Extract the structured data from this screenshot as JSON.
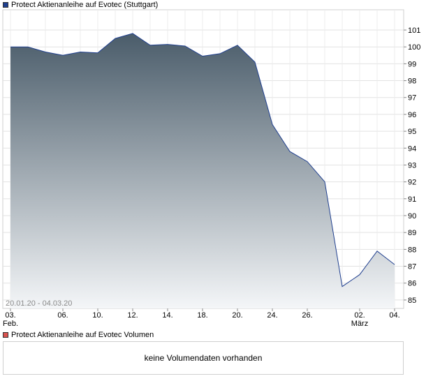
{
  "legend": {
    "price_series": "Protect Aktienanleihe auf Evotec  (Stuttgart)",
    "volume_series": "Protect Aktienanleihe auf Evotec  Volumen",
    "price_color": "#1f3f8f",
    "volume_color": "#d9534f"
  },
  "date_range": "20.01.20 - 04.03.20",
  "volume_message": "keine Volumendaten vorhanden",
  "chart_data": {
    "type": "area",
    "ylim": [
      84.5,
      102.2
    ],
    "y_ticks": [
      85,
      86,
      87,
      88,
      89,
      90,
      91,
      92,
      93,
      94,
      95,
      96,
      97,
      98,
      99,
      100,
      101
    ],
    "x": [
      "03.02.",
      "04.02.",
      "05.02.",
      "06.02.",
      "07.02.",
      "10.02.",
      "11.02.",
      "12.02.",
      "13.02.",
      "14.02.",
      "17.02.",
      "18.02.",
      "19.02.",
      "20.02.",
      "21.02.",
      "24.02.",
      "25.02.",
      "26.02.",
      "27.02.",
      "28.02.",
      "02.03.",
      "03.03.",
      "04.03."
    ],
    "values": [
      100.0,
      100.0,
      99.7,
      99.5,
      99.7,
      99.65,
      100.5,
      100.8,
      100.1,
      100.15,
      100.05,
      99.45,
      99.6,
      100.1,
      99.1,
      95.4,
      93.8,
      93.2,
      92.0,
      85.8,
      86.5,
      87.9,
      87.1
    ],
    "x_tick_labels": [
      {
        "index": 0,
        "label": "03.",
        "sublabel": "Feb."
      },
      {
        "index": 3,
        "label": "06."
      },
      {
        "index": 5,
        "label": "10."
      },
      {
        "index": 7,
        "label": "12."
      },
      {
        "index": 9,
        "label": "14."
      },
      {
        "index": 11,
        "label": "18."
      },
      {
        "index": 13,
        "label": "20."
      },
      {
        "index": 15,
        "label": "24."
      },
      {
        "index": 17,
        "label": "26."
      },
      {
        "index": 20,
        "label": "02.",
        "sublabel": "März"
      },
      {
        "index": 22,
        "label": "04."
      }
    ],
    "grid": true,
    "area_gradient": [
      "#4a5c6a",
      "#f4f6f8"
    ]
  }
}
